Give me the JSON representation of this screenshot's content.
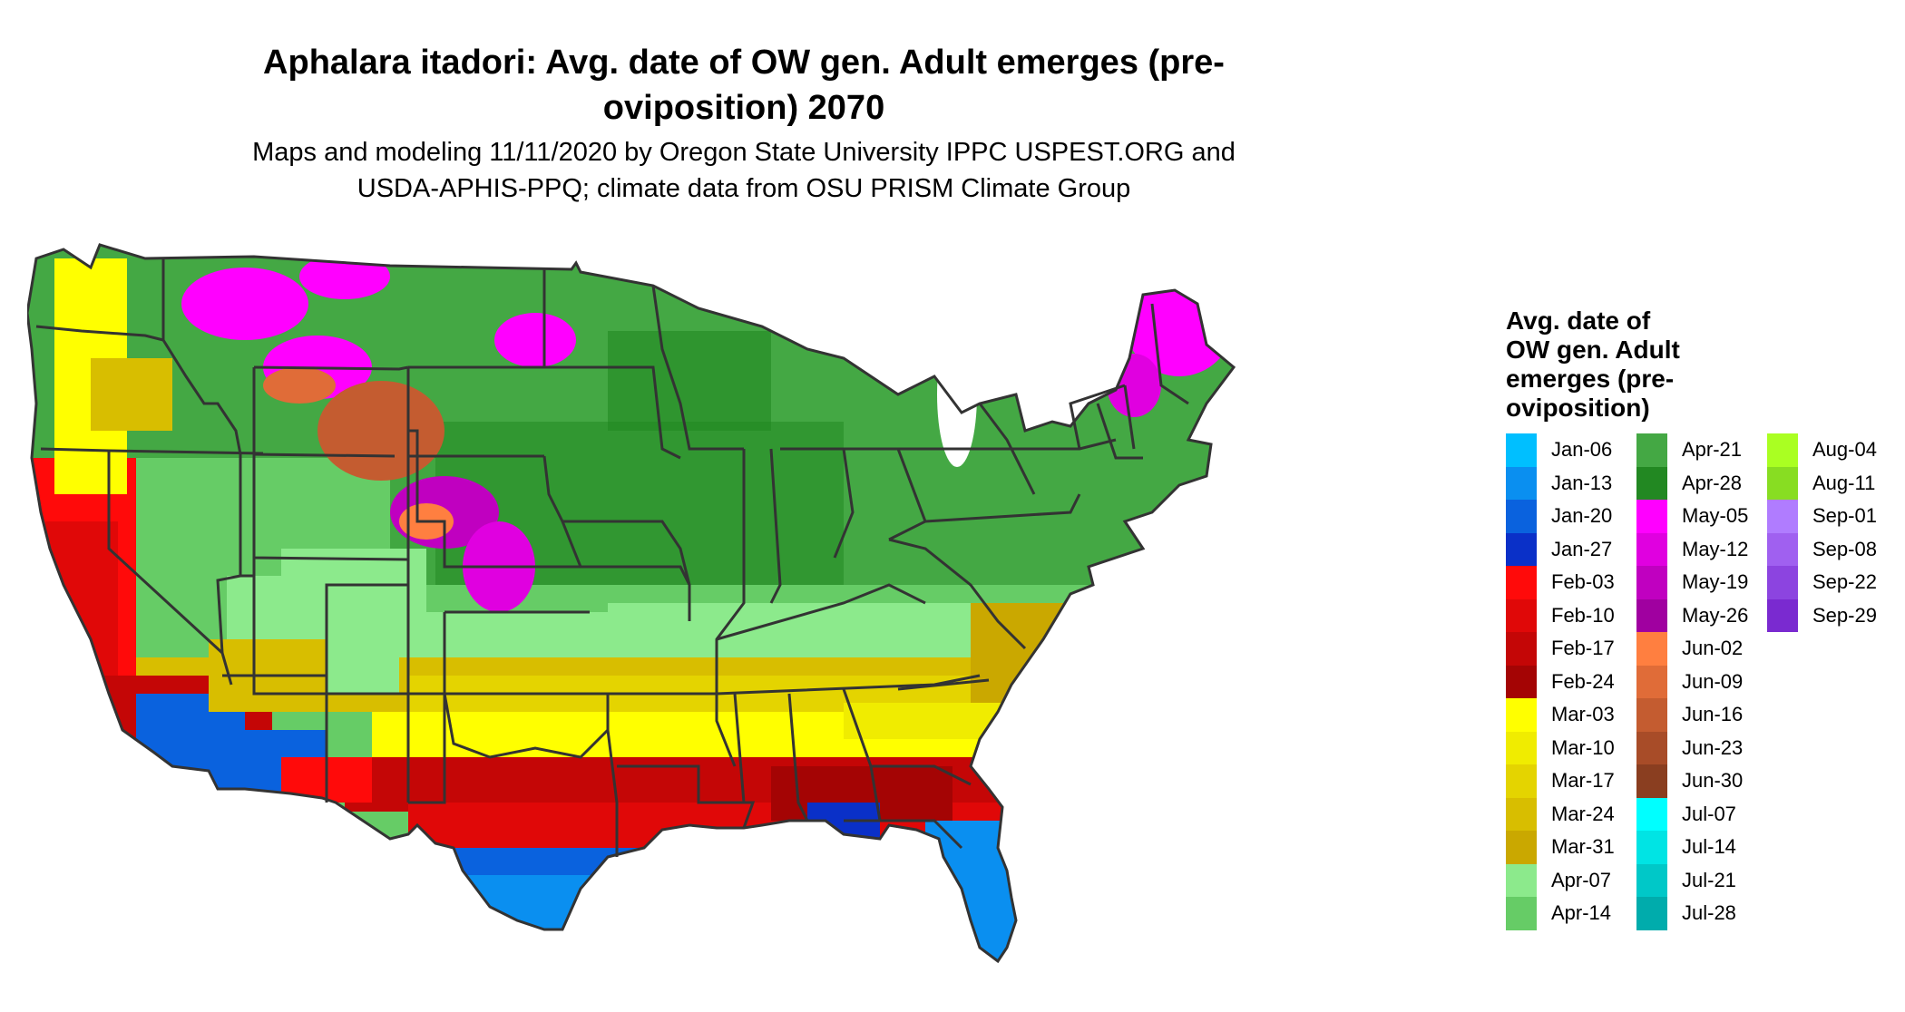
{
  "title_line1": "Aphalara itadori: Avg. date of OW gen. Adult emerges (pre-",
  "title_line2": "oviposition) 2070",
  "subtitle_line1": "Maps and modeling 11/11/2020 by Oregon State University IPPC USPEST.ORG and",
  "subtitle_line2": "USDA-APHIS-PPQ; climate data from OSU PRISM Climate Group",
  "legend": {
    "title_lines": [
      "Avg. date of",
      "OW gen. Adult",
      "emerges (pre-",
      "oviposition)"
    ],
    "columns": [
      [
        {
          "label": "Jan-06",
          "color": "#00bfff"
        },
        {
          "label": "Jan-13",
          "color": "#0a8ff0"
        },
        {
          "label": "Jan-20",
          "color": "#0a62de"
        },
        {
          "label": "Jan-27",
          "color": "#0a30c8"
        },
        {
          "label": "Feb-03",
          "color": "#ff0a0a"
        },
        {
          "label": "Feb-10",
          "color": "#e00808"
        },
        {
          "label": "Feb-17",
          "color": "#c40606"
        },
        {
          "label": "Feb-24",
          "color": "#a40404"
        },
        {
          "label": "Mar-03",
          "color": "#ffff00"
        },
        {
          "label": "Mar-10",
          "color": "#f0ec00"
        },
        {
          "label": "Mar-17",
          "color": "#e4d400"
        },
        {
          "label": "Mar-24",
          "color": "#d8be00"
        },
        {
          "label": "Mar-31",
          "color": "#caa800"
        },
        {
          "label": "Apr-07",
          "color": "#8cea8c"
        },
        {
          "label": "Apr-14",
          "color": "#66cc66"
        }
      ],
      [
        {
          "label": "Apr-21",
          "color": "#44a844"
        },
        {
          "label": "Apr-28",
          "color": "#228822"
        },
        {
          "label": "May-05",
          "color": "#ff00ff"
        },
        {
          "label": "May-12",
          "color": "#e000e0"
        },
        {
          "label": "May-19",
          "color": "#c000c0"
        },
        {
          "label": "May-26",
          "color": "#a000a0"
        },
        {
          "label": "Jun-02",
          "color": "#ff7f40"
        },
        {
          "label": "Jun-09",
          "color": "#e06c38"
        },
        {
          "label": "Jun-16",
          "color": "#c45c30"
        },
        {
          "label": "Jun-23",
          "color": "#a84c28"
        },
        {
          "label": "Jun-30",
          "color": "#8a3e20"
        },
        {
          "label": "Jul-07",
          "color": "#00ffff"
        },
        {
          "label": "Jul-14",
          "color": "#00e4e4"
        },
        {
          "label": "Jul-21",
          "color": "#00c8c8"
        },
        {
          "label": "Jul-28",
          "color": "#00acac"
        }
      ],
      [
        {
          "label": "Aug-04",
          "color": "#aaff22"
        },
        {
          "label": "Aug-11",
          "color": "#88dd22"
        },
        {
          "label": "Sep-01",
          "color": "#b07cff"
        },
        {
          "label": "Sep-08",
          "color": "#a060f0"
        },
        {
          "label": "Sep-22",
          "color": "#8c44e0"
        },
        {
          "label": "Sep-29",
          "color": "#7a2ad0"
        }
      ]
    ]
  }
}
